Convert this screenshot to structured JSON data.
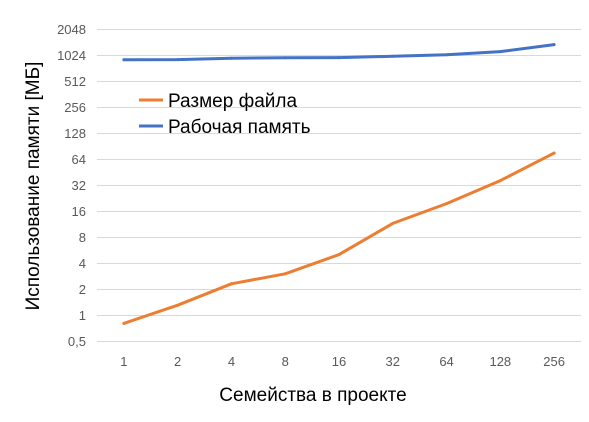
{
  "chart_data": {
    "type": "line",
    "xlabel": "Семейства в проекте",
    "ylabel": "Использование памяти [МБ]",
    "y_scale": "log2",
    "grid": "horizontal",
    "legend_placement": "upper-left inside plot",
    "categories": [
      "1",
      "2",
      "4",
      "8",
      "16",
      "32",
      "64",
      "128",
      "256"
    ],
    "y_ticks": [
      0.5,
      1,
      2,
      4,
      8,
      16,
      32,
      64,
      128,
      256,
      512,
      1024,
      2048
    ],
    "y_tick_labels": [
      "0,5",
      "1",
      "2",
      "4",
      "8",
      "16",
      "32",
      "64",
      "128",
      "256",
      "512",
      "1024",
      "2048"
    ],
    "ylim": [
      0.5,
      2048
    ],
    "series": [
      {
        "name": "Размер файла",
        "color": "#ed7d31",
        "values": [
          0.8,
          1.3,
          2.3,
          3.0,
          5.0,
          11.5,
          19.5,
          36,
          75
        ]
      },
      {
        "name": "Рабочая память",
        "color": "#4472c4",
        "values": [
          900,
          905,
          940,
          950,
          955,
          990,
          1030,
          1120,
          1350
        ]
      }
    ]
  }
}
